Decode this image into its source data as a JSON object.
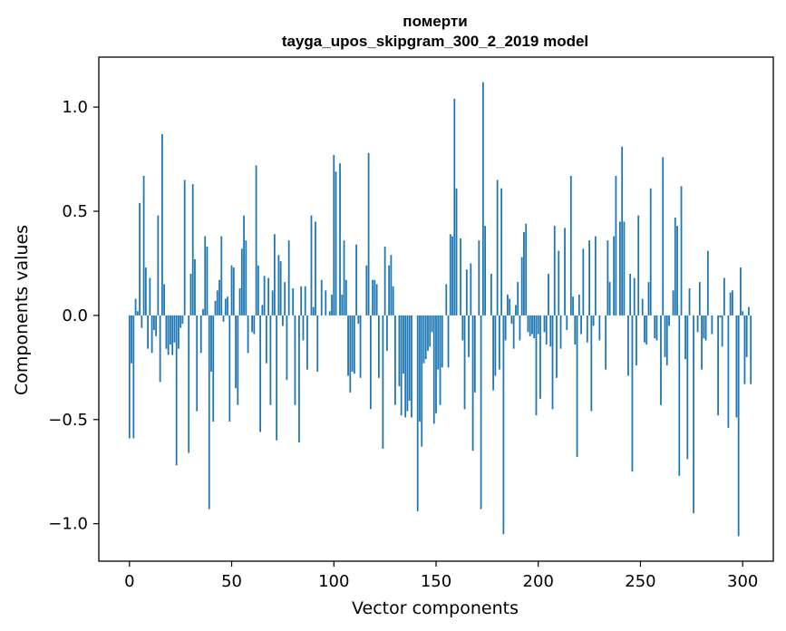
{
  "chart_data": {
    "type": "bar",
    "title_line1": "померти",
    "title_line2": "tayga_upos_skipgram_300_2_2019 model",
    "xlabel": "Vector components",
    "ylabel": "Components values",
    "xlim": [
      -15,
      315
    ],
    "ylim": [
      -1.18,
      1.24
    ],
    "xticks": [
      0,
      50,
      100,
      150,
      200,
      250,
      300
    ],
    "xtick_labels": [
      "0",
      "50",
      "100",
      "150",
      "200",
      "250",
      "300"
    ],
    "yticks": [
      -1.0,
      -0.5,
      0.0,
      0.5,
      1.0
    ],
    "ytick_labels": [
      "−1.0",
      "−0.5",
      "0.0",
      "0.5",
      "1.0"
    ],
    "bar_color": "#1f77b4",
    "grid": false,
    "values": [
      -0.59,
      -0.23,
      -0.59,
      0.08,
      0.02,
      0.54,
      -0.06,
      0.67,
      0.23,
      -0.16,
      0.18,
      -0.18,
      -0.07,
      -0.1,
      0.48,
      -0.32,
      0.87,
      0.15,
      -0.16,
      -0.19,
      -0.14,
      -0.19,
      -0.13,
      -0.72,
      -0.16,
      -0.06,
      -0.04,
      0.65,
      0.0,
      -0.66,
      0.2,
      0.63,
      0.27,
      -0.46,
      0.0,
      -0.18,
      0.03,
      0.38,
      0.33,
      -0.93,
      -0.27,
      -0.51,
      0.07,
      0.12,
      0.17,
      0.38,
      -0.03,
      0.08,
      0.09,
      -0.51,
      0.24,
      0.23,
      -0.35,
      -0.43,
      0.13,
      0.32,
      0.48,
      0.36,
      -0.18,
      0.0,
      -0.08,
      -0.09,
      0.72,
      0.24,
      -0.56,
      0.05,
      0.19,
      -0.23,
      0.18,
      -0.43,
      0.12,
      0.39,
      -0.6,
      0.29,
      0.26,
      -0.05,
      0.16,
      -0.31,
      0.36,
      0.0,
      0.13,
      -0.43,
      0.0,
      -0.61,
      0.14,
      -0.12,
      0.14,
      -0.26,
      0.0,
      0.48,
      0.04,
      0.45,
      -0.27,
      0.0,
      0.17,
      0.0,
      0.12,
      0.0,
      0.02,
      0.1,
      0.77,
      0.69,
      0.0,
      0.73,
      0.1,
      0.36,
      0.17,
      -0.29,
      -0.37,
      -0.27,
      -0.28,
      0.34,
      -0.04,
      -0.3,
      0.0,
      0.0,
      0.24,
      0.78,
      -0.45,
      0.17,
      0.17,
      0.15,
      -0.3,
      0.0,
      -0.64,
      0.33,
      -0.17,
      0.24,
      0.29,
      0.14,
      -0.43,
      0.0,
      -0.34,
      -0.48,
      -0.28,
      -0.49,
      -0.46,
      -0.41,
      -0.49,
      0.0,
      0.0,
      -0.94,
      -0.51,
      -0.63,
      -0.23,
      -0.21,
      -0.17,
      -0.15,
      -0.08,
      -0.52,
      -0.47,
      -0.26,
      -0.43,
      -0.25,
      0.0,
      0.15,
      -0.25,
      0.39,
      0.38,
      1.04,
      0.61,
      0.0,
      0.37,
      -0.12,
      -0.45,
      0.22,
      -0.2,
      0.25,
      -0.65,
      -0.37,
      0.0,
      0.36,
      -0.93,
      1.12,
      0.43,
      0.0,
      0.0,
      0.2,
      -0.36,
      -0.29,
      0.65,
      -0.26,
      0.61,
      -1.05,
      -0.12,
      0.1,
      0.08,
      -0.04,
      -0.16,
      0.05,
      0.16,
      -0.12,
      0.28,
      0.4,
      0.44,
      -0.08,
      -0.1,
      -0.09,
      -0.11,
      -0.48,
      -0.09,
      -0.4,
      0.0,
      -0.08,
      -0.14,
      0.2,
      -0.15,
      -0.45,
      0.43,
      -0.3,
      0.31,
      -0.16,
      0.0,
      0.42,
      -0.07,
      0.0,
      0.67,
      0.09,
      -0.14,
      -0.68,
      0.1,
      -0.09,
      0.32,
      0.0,
      -0.13,
      0.36,
      -0.46,
      -0.05,
      0.38,
      0.0,
      -0.12,
      0.0,
      0.0,
      -0.26,
      0.36,
      0.16,
      0.0,
      0.38,
      0.67,
      0.0,
      0.45,
      0.81,
      0.45,
      0.0,
      -0.29,
      0.2,
      -0.75,
      0.18,
      -0.24,
      0.48,
      0.0,
      0.08,
      -0.13,
      -0.14,
      0.16,
      0.61,
      0.0,
      -0.11,
      -0.12,
      0.0,
      -0.43,
      0.76,
      -0.2,
      -0.24,
      -0.05,
      0.0,
      0.12,
      0.47,
      0.43,
      -0.77,
      0.62,
      0.0,
      -0.21,
      -0.69,
      0.13,
      0.0,
      -0.95,
      0.0,
      -0.08,
      0.16,
      -0.26,
      -0.11,
      -0.12,
      0.31,
      0.0,
      -0.09,
      0.0,
      0.0,
      -0.48,
      -0.01,
      -0.15,
      0.18,
      0.0,
      -0.54,
      0.11,
      0.12,
      0.0,
      -0.49,
      -1.06,
      0.23,
      0.02,
      -0.33,
      -0.2,
      0.04,
      -0.33
    ]
  }
}
